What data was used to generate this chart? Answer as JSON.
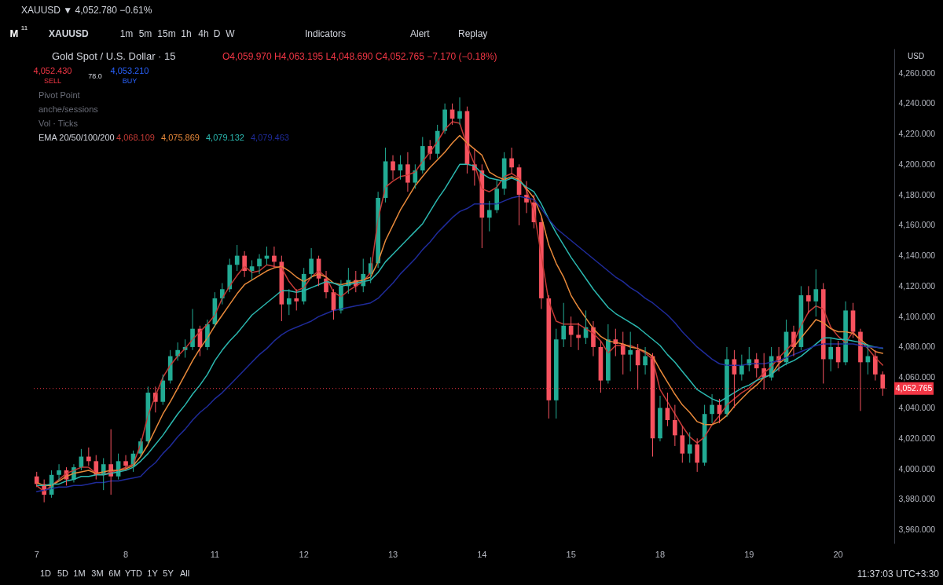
{
  "chart_data": {
    "type": "candlestick",
    "title": "Gold Spot / U.S. Dollar · 15",
    "subtitle": "O4,059.970 H4,063.195 L4,048.690 C4,052.765 −7.170 (−0.18%)",
    "categories": [
      "7",
      null,
      null,
      null,
      null,
      null,
      null,
      null,
      null,
      null,
      null,
      null,
      "8",
      null,
      null,
      null,
      null,
      null,
      null,
      null,
      null,
      null,
      null,
      null,
      "11",
      null,
      null,
      null,
      null,
      null,
      null,
      null,
      null,
      null,
      null,
      null,
      "12",
      null,
      null,
      null,
      null,
      null,
      null,
      null,
      null,
      null,
      null,
      null,
      "13",
      null,
      null,
      null,
      null,
      null,
      null,
      null,
      null,
      null,
      null,
      null,
      "14",
      null,
      null,
      null,
      null,
      null,
      null,
      null,
      null,
      null,
      null,
      null,
      "15",
      null,
      null,
      null,
      null,
      null,
      null,
      null,
      null,
      null,
      null,
      null,
      "18",
      null,
      null,
      null,
      null,
      null,
      null,
      null,
      null,
      null,
      null,
      null,
      "19",
      null,
      null,
      null,
      null,
      null,
      null,
      null,
      null,
      null,
      null,
      null,
      "20",
      null,
      null,
      null,
      null,
      null,
      null
    ],
    "ohlc": [
      [
        3995,
        3998,
        3988,
        3990
      ],
      [
        3990,
        3993,
        3978,
        3983
      ],
      [
        3983,
        3999,
        3981,
        3996
      ],
      [
        3996,
        4003,
        3992,
        3999
      ],
      [
        3999,
        4001,
        3989,
        3993
      ],
      [
        3993,
        4003,
        3991,
        4001
      ],
      [
        4001,
        4013,
        3999,
        4008
      ],
      [
        4008,
        4014,
        4002,
        4005
      ],
      [
        4005,
        4009,
        3993,
        3996
      ],
      [
        3996,
        4007,
        3986,
        4003
      ],
      [
        4003,
        4026,
        3983,
        3995
      ],
      [
        3995,
        4010,
        3993,
        4005
      ],
      [
        4005,
        4009,
        3999,
        4002
      ],
      [
        4002,
        4012,
        3998,
        4010
      ],
      [
        4010,
        4020,
        4008,
        4018
      ],
      [
        4018,
        4054,
        4016,
        4050
      ],
      [
        4050,
        4054,
        4037,
        4044
      ],
      [
        4044,
        4062,
        4042,
        4058
      ],
      [
        4058,
        4078,
        4056,
        4074
      ],
      [
        4074,
        4083,
        4071,
        4078
      ],
      [
        4078,
        4085,
        4073,
        4080
      ],
      [
        4080,
        4105,
        4078,
        4092
      ],
      [
        4092,
        4094,
        4074,
        4080
      ],
      [
        4080,
        4098,
        4078,
        4095
      ],
      [
        4095,
        4116,
        4093,
        4112
      ],
      [
        4112,
        4122,
        4108,
        4118
      ],
      [
        4118,
        4138,
        4116,
        4134
      ],
      [
        4134,
        4147,
        4130,
        4140
      ],
      [
        4140,
        4143,
        4126,
        4130
      ],
      [
        4130,
        4137,
        4124,
        4133
      ],
      [
        4133,
        4141,
        4128,
        4138
      ],
      [
        4138,
        4146,
        4134,
        4140
      ],
      [
        4140,
        4146,
        4132,
        4136
      ],
      [
        4136,
        4140,
        4097,
        4108
      ],
      [
        4108,
        4118,
        4101,
        4112
      ],
      [
        4112,
        4118,
        4104,
        4110
      ],
      [
        4110,
        4132,
        4108,
        4128
      ],
      [
        4128,
        4145,
        4125,
        4138
      ],
      [
        4138,
        4140,
        4120,
        4125
      ],
      [
        4125,
        4130,
        4112,
        4116
      ],
      [
        4116,
        4118,
        4098,
        4104
      ],
      [
        4104,
        4124,
        4102,
        4120
      ],
      [
        4120,
        4132,
        4115,
        4124
      ],
      [
        4124,
        4130,
        4116,
        4120
      ],
      [
        4120,
        4138,
        4116,
        4128
      ],
      [
        4128,
        4139,
        4122,
        4135
      ],
      [
        4135,
        4182,
        4132,
        4178
      ],
      [
        4178,
        4211,
        4175,
        4202
      ],
      [
        4202,
        4206,
        4190,
        4196
      ],
      [
        4196,
        4206,
        4190,
        4200
      ],
      [
        4200,
        4208,
        4182,
        4188
      ],
      [
        4188,
        4200,
        4184,
        4196
      ],
      [
        4196,
        4218,
        4194,
        4212
      ],
      [
        4212,
        4216,
        4203,
        4207
      ],
      [
        4207,
        4226,
        4204,
        4222
      ],
      [
        4222,
        4240,
        4220,
        4236
      ],
      [
        4236,
        4240,
        4226,
        4230
      ],
      [
        4230,
        4244,
        4226,
        4235
      ],
      [
        4235,
        4238,
        4194,
        4200
      ],
      [
        4200,
        4210,
        4186,
        4196
      ],
      [
        4196,
        4200,
        4145,
        4165
      ],
      [
        4165,
        4176,
        4156,
        4170
      ],
      [
        4170,
        4190,
        4168,
        4184
      ],
      [
        4184,
        4208,
        4180,
        4204
      ],
      [
        4204,
        4211,
        4194,
        4198
      ],
      [
        4198,
        4200,
        4160,
        4180
      ],
      [
        4180,
        4189,
        4168,
        4175
      ],
      [
        4175,
        4180,
        4158,
        4162
      ],
      [
        4162,
        4165,
        4105,
        4112
      ],
      [
        4112,
        4114,
        4033,
        4045
      ],
      [
        4045,
        4092,
        4033,
        4085
      ],
      [
        4085,
        4109,
        4080,
        4094
      ],
      [
        4094,
        4100,
        4080,
        4088
      ],
      [
        4088,
        4096,
        4078,
        4086
      ],
      [
        4086,
        4104,
        4082,
        4093
      ],
      [
        4093,
        4097,
        4074,
        4080
      ],
      [
        4080,
        4084,
        4050,
        4058
      ],
      [
        4058,
        4095,
        4056,
        4085
      ],
      [
        4085,
        4092,
        4074,
        4082
      ],
      [
        4082,
        4090,
        4062,
        4075
      ],
      [
        4075,
        4090,
        4064,
        4078
      ],
      [
        4078,
        4082,
        4052,
        4068
      ],
      [
        4068,
        4080,
        4062,
        4074
      ],
      [
        4074,
        4076,
        4008,
        4020
      ],
      [
        4020,
        4048,
        4018,
        4040
      ],
      [
        4040,
        4050,
        4028,
        4032
      ],
      [
        4032,
        4042,
        4015,
        4022
      ],
      [
        4022,
        4028,
        4004,
        4010
      ],
      [
        4010,
        4024,
        4004,
        4016
      ],
      [
        4016,
        4020,
        3998,
        4004
      ],
      [
        4004,
        4042,
        4002,
        4036
      ],
      [
        4036,
        4049,
        4030,
        4042
      ],
      [
        4042,
        4046,
        4030,
        4036
      ],
      [
        4036,
        4080,
        4034,
        4072
      ],
      [
        4072,
        4078,
        4040,
        4062
      ],
      [
        4062,
        4075,
        4058,
        4068
      ],
      [
        4068,
        4080,
        4064,
        4072
      ],
      [
        4072,
        4076,
        4060,
        4066
      ],
      [
        4066,
        4076,
        4052,
        4060
      ],
      [
        4060,
        4080,
        4058,
        4074
      ],
      [
        4074,
        4080,
        4064,
        4070
      ],
      [
        4070,
        4098,
        4068,
        4090
      ],
      [
        4090,
        4094,
        4074,
        4080
      ],
      [
        4080,
        4120,
        4078,
        4114
      ],
      [
        4114,
        4120,
        4102,
        4110
      ],
      [
        4110,
        4131,
        4100,
        4118
      ],
      [
        4118,
        4122,
        4056,
        4072
      ],
      [
        4072,
        4086,
        4064,
        4080
      ],
      [
        4080,
        4084,
        4066,
        4070
      ],
      [
        4070,
        4110,
        4068,
        4104
      ],
      [
        4104,
        4109,
        4086,
        4090
      ],
      [
        4090,
        4092,
        4038,
        4070
      ],
      [
        4070,
        4082,
        4062,
        4074
      ],
      [
        4074,
        4078,
        4058,
        4062
      ],
      [
        4062,
        4064,
        4048,
        4052.765
      ]
    ],
    "colors": [
      "#f7525f",
      "#f7525f",
      "#22ab94",
      "#22ab94",
      "#f7525f",
      "#22ab94",
      "#22ab94",
      "#f7525f",
      "#f7525f",
      "#22ab94",
      "#f7525f",
      "#22ab94",
      "#f7525f",
      "#22ab94",
      "#22ab94",
      "#22ab94",
      "#f7525f",
      "#22ab94",
      "#22ab94",
      "#22ab94",
      "#22ab94",
      "#22ab94",
      "#f7525f",
      "#22ab94",
      "#22ab94",
      "#22ab94",
      "#22ab94",
      "#22ab94",
      "#f7525f",
      "#22ab94",
      "#22ab94",
      "#22ab94",
      "#f7525f",
      "#f7525f",
      "#22ab94",
      "#f7525f",
      "#22ab94",
      "#22ab94",
      "#f7525f",
      "#f7525f",
      "#f7525f",
      "#22ab94",
      "#22ab94",
      "#f7525f",
      "#22ab94",
      "#22ab94",
      "#22ab94",
      "#22ab94",
      "#f7525f",
      "#22ab94",
      "#f7525f",
      "#22ab94",
      "#22ab94",
      "#f7525f",
      "#22ab94",
      "#22ab94",
      "#f7525f",
      "#22ab94",
      "#f7525f",
      "#f7525f",
      "#f7525f",
      "#22ab94",
      "#22ab94",
      "#22ab94",
      "#f7525f",
      "#f7525f",
      "#f7525f",
      "#f7525f",
      "#f7525f",
      "#f7525f",
      "#22ab94",
      "#22ab94",
      "#f7525f",
      "#f7525f",
      "#22ab94",
      "#f7525f",
      "#f7525f",
      "#22ab94",
      "#f7525f",
      "#f7525f",
      "#22ab94",
      "#f7525f",
      "#22ab94",
      "#f7525f",
      "#22ab94",
      "#f7525f",
      "#f7525f",
      "#f7525f",
      "#22ab94",
      "#f7525f",
      "#22ab94",
      "#22ab94",
      "#f7525f",
      "#22ab94",
      "#f7525f",
      "#22ab94",
      "#22ab94",
      "#f7525f",
      "#f7525f",
      "#22ab94",
      "#f7525f",
      "#22ab94",
      "#f7525f",
      "#22ab94",
      "#f7525f",
      "#22ab94",
      "#f7525f",
      "#22ab94",
      "#f7525f",
      "#22ab94",
      "#f7525f",
      "#f7525f",
      "#22ab94",
      "#f7525f",
      "#f7525f"
    ],
    "series": [
      {
        "type": "line",
        "color": "#c43a35",
        "values": [
          3989,
          3985,
          3989,
          3993,
          3997,
          3999,
          4001,
          4001,
          3997,
          3996,
          3998,
          3999,
          4001,
          4003,
          4016,
          4035,
          4048,
          4060,
          4068,
          4074,
          4079,
          4085,
          4090,
          4095,
          4101,
          4112,
          4120,
          4127,
          4133,
          4129,
          4130,
          4134,
          4133,
          4132,
          4123,
          4117,
          4119,
          4126,
          4130,
          4126,
          4116,
          4113,
          4117,
          4120,
          4123,
          4129,
          4164,
          4185,
          4189,
          4192,
          4193,
          4195,
          4202,
          4208,
          4215,
          4223,
          4228,
          4227,
          4212,
          4200,
          4184,
          4182,
          4185,
          4192,
          4194,
          4191,
          4183,
          4170,
          4140,
          4110,
          4097,
          4095,
          4095,
          4095,
          4092,
          4089,
          4084,
          4076,
          4081,
          4081,
          4081,
          4079,
          4076,
          4072,
          4052,
          4044,
          4036,
          4028,
          4021,
          4017,
          4021,
          4029,
          4035,
          4042,
          4046,
          4050,
          4053,
          4058,
          4063,
          4067,
          4073,
          4078,
          4083,
          4094,
          4103,
          4107,
          4105,
          4093,
          4087,
          4083,
          4090,
          4084,
          4079,
          4073,
          4068.109
        ]
      },
      {
        "type": "line",
        "color": "#e8893a",
        "values": [
          3991,
          3989,
          3989,
          3992,
          3995,
          3997,
          3998,
          3999,
          3997,
          3998,
          3999,
          3999,
          4000,
          4002,
          4008,
          4016,
          4026,
          4036,
          4044,
          4053,
          4062,
          4071,
          4079,
          4086,
          4094,
          4101,
          4108,
          4115,
          4121,
          4124,
          4127,
          4130,
          4132,
          4133,
          4130,
          4126,
          4123,
          4126,
          4128,
          4126,
          4122,
          4121,
          4122,
          4123,
          4124,
          4126,
          4136,
          4150,
          4160,
          4170,
          4178,
          4186,
          4192,
          4198,
          4203,
          4208,
          4214,
          4219,
          4214,
          4210,
          4206,
          4195,
          4192,
          4190,
          4192,
          4190,
          4184,
          4178,
          4166,
          4147,
          4135,
          4126,
          4114,
          4106,
          4099,
          4092,
          4087,
          4084,
          4083,
          4082,
          4080,
          4079,
          4077,
          4074,
          4065,
          4057,
          4049,
          4042,
          4037,
          4031,
          4029,
          4029,
          4031,
          4035,
          4041,
          4046,
          4051,
          4055,
          4060,
          4062,
          4069,
          4073,
          4080,
          4086,
          4092,
          4098,
          4096,
          4092,
          4090,
          4090,
          4089,
          4085,
          4081,
          4077,
          4075.869
        ]
      },
      {
        "type": "line",
        "color": "#2bb8b0",
        "values": [
          3989,
          3989,
          3990,
          3990,
          3992,
          3993,
          3995,
          3995,
          3996,
          3996,
          3997,
          3998,
          3999,
          4001,
          4005,
          4010,
          4016,
          4022,
          4029,
          4036,
          4042,
          4049,
          4055,
          4062,
          4071,
          4078,
          4084,
          4089,
          4095,
          4101,
          4105,
          4109,
          4113,
          4117,
          4117,
          4116,
          4117,
          4119,
          4121,
          4123,
          4122,
          4120,
          4121,
          4122,
          4123,
          4124,
          4129,
          4136,
          4141,
          4146,
          4151,
          4156,
          4161,
          4169,
          4177,
          4184,
          4192,
          4200,
          4200,
          4199,
          4194,
          4191,
          4190,
          4189,
          4191,
          4189,
          4185,
          4182,
          4174,
          4164,
          4155,
          4147,
          4139,
          4132,
          4125,
          4118,
          4112,
          4106,
          4102,
          4099,
          4096,
          4093,
          4089,
          4085,
          4081,
          4075,
          4070,
          4064,
          4058,
          4052,
          4049,
          4046,
          4044,
          4047,
          4050,
          4053,
          4055,
          4058,
          4060,
          4062,
          4066,
          4069,
          4071,
          4074,
          4078,
          4082,
          4086,
          4086,
          4085,
          4085,
          4084,
          4083,
          4081,
          4080,
          4079.132
        ]
      },
      {
        "type": "line",
        "color": "#1f2b9a",
        "values": [
          3985,
          3986,
          3987,
          3988,
          3988,
          3989,
          3989,
          3990,
          3991,
          3991,
          3992,
          3992,
          3993,
          3994,
          3995,
          4000,
          4004,
          4010,
          4015,
          4021,
          4026,
          4032,
          4037,
          4041,
          4046,
          4050,
          4055,
          4060,
          4065,
          4070,
          4075,
          4079,
          4084,
          4088,
          4091,
          4093,
          4095,
          4097,
          4100,
          4102,
          4104,
          4105,
          4106,
          4107,
          4108,
          4109,
          4112,
          4117,
          4122,
          4128,
          4133,
          4138,
          4144,
          4149,
          4155,
          4160,
          4165,
          4169,
          4171,
          4174,
          4174,
          4174,
          4174,
          4176,
          4178,
          4179,
          4178,
          4177,
          4171,
          4164,
          4158,
          4154,
          4150,
          4146,
          4142,
          4138,
          4134,
          4130,
          4126,
          4123,
          4119,
          4116,
          4112,
          4109,
          4105,
          4101,
          4096,
          4090,
          4085,
          4080,
          4076,
          4072,
          4069,
          4068,
          4068,
          4068,
          4069,
          4069,
          4069,
          4070,
          4071,
          4073,
          4075,
          4077,
          4079,
          4081,
          4082,
          4082,
          4082,
          4082,
          4082,
          4081,
          4080,
          4080,
          4079.463
        ]
      }
    ],
    "ylim": [
      3951,
      4276
    ],
    "yticks": [
      {
        "value": 3960,
        "label": "3,960.000"
      },
      {
        "value": 3980,
        "label": "3,980.000"
      },
      {
        "value": 4000,
        "label": "4,000.000"
      },
      {
        "value": 4020,
        "label": "4,020.000"
      },
      {
        "value": 4040,
        "label": "4,040.000"
      },
      {
        "value": 4060,
        "label": "4,060.000"
      },
      {
        "value": 4080,
        "label": "4,080.000"
      },
      {
        "value": 4100,
        "label": "4,100.000"
      },
      {
        "value": 4120,
        "label": "4,120.000"
      },
      {
        "value": 4140,
        "label": "4,140.000"
      },
      {
        "value": 4160,
        "label": "4,160.000"
      },
      {
        "value": 4180,
        "label": "4,180.000"
      },
      {
        "value": 4200,
        "label": "4,200.000"
      },
      {
        "value": 4220,
        "label": "4,220.000"
      },
      {
        "value": 4240,
        "label": "4,240.000"
      },
      {
        "value": 4260,
        "label": "4,260.000"
      }
    ],
    "ref_lines": [
      {
        "axis": "y",
        "value": 4052.765,
        "label": "4,052.765",
        "color": "#f23645",
        "line_style": "dotted"
      }
    ],
    "annotations": [
      "XAUUSD ▼ 4,052.780 −0.61%",
      "M",
      "11",
      "XAUUSD",
      "1m",
      "5m",
      "15m",
      "1h",
      "4h",
      "D",
      "W",
      "Indicators",
      "Alert",
      "Replay",
      "USD",
      "4,052.430",
      "SELL",
      "78.0",
      "4,053.210",
      "BUY",
      "Pivot Point",
      "anche/sessions",
      "Vol · Ticks",
      "EMA 20/50/100/200",
      "4,068.109",
      "4,075.869",
      "4,079.132",
      "4,079.463",
      "1D",
      "5D",
      "1M",
      "3M",
      "6M",
      "YTD",
      "1Y",
      "5Y",
      "All",
      "11:37:03 UTC+3:30"
    ]
  }
}
